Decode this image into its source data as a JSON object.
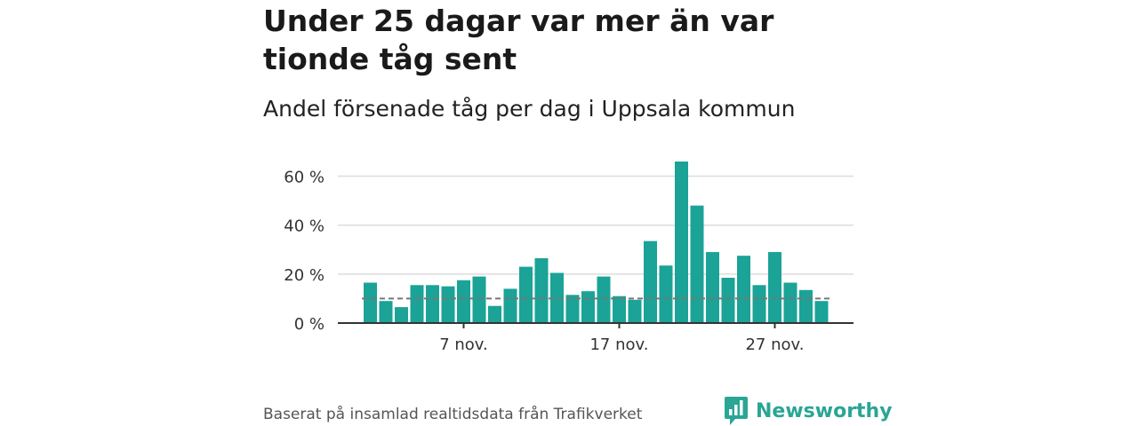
{
  "title": "Under 25 dagar var mer än var tionde tåg sent",
  "subtitle": "Andel försenade tåg per dag i Uppsala kommun",
  "source": "Baserat på insamlad realtidsdata från Trafikverket",
  "logo": {
    "text": "Newsworthy",
    "icon": "bar-chart-speech-icon"
  },
  "colors": {
    "bar": "#1aa396",
    "reference": "#777777",
    "grid": "#dddddd",
    "axis": "#333333",
    "brand": "#2aa596"
  },
  "chart_data": {
    "type": "bar",
    "x_type": "date",
    "x": [
      "2019-11-01",
      "2019-11-02",
      "2019-11-03",
      "2019-11-04",
      "2019-11-05",
      "2019-11-06",
      "2019-11-07",
      "2019-11-08",
      "2019-11-09",
      "2019-11-10",
      "2019-11-11",
      "2019-11-12",
      "2019-11-13",
      "2019-11-14",
      "2019-11-15",
      "2019-11-16",
      "2019-11-17",
      "2019-11-18",
      "2019-11-19",
      "2019-11-20",
      "2019-11-21",
      "2019-11-22",
      "2019-11-23",
      "2019-11-24",
      "2019-11-25",
      "2019-11-26",
      "2019-11-27",
      "2019-11-28",
      "2019-11-29",
      "2019-11-30"
    ],
    "values": [
      16.5,
      9,
      6.5,
      15.5,
      15.5,
      15,
      17.5,
      19,
      7,
      14,
      23,
      26.5,
      20.5,
      11.5,
      13,
      19,
      11,
      9.5,
      33.5,
      23.5,
      66,
      48,
      29,
      18.5,
      27.5,
      15.5,
      29,
      16.5,
      13.5,
      9
    ],
    "reference_line": 10,
    "ylim": [
      0,
      66
    ],
    "yticks": [
      0,
      20,
      40,
      60
    ],
    "ytick_labels": [
      "0 %",
      "20 %",
      "40 %",
      "60 %"
    ],
    "xticks": [
      "2019-11-07",
      "2019-11-17",
      "2019-11-27"
    ],
    "xtick_labels": [
      "7 nov.",
      "17 nov.",
      "27 nov."
    ],
    "grid": true,
    "unit": "%"
  }
}
